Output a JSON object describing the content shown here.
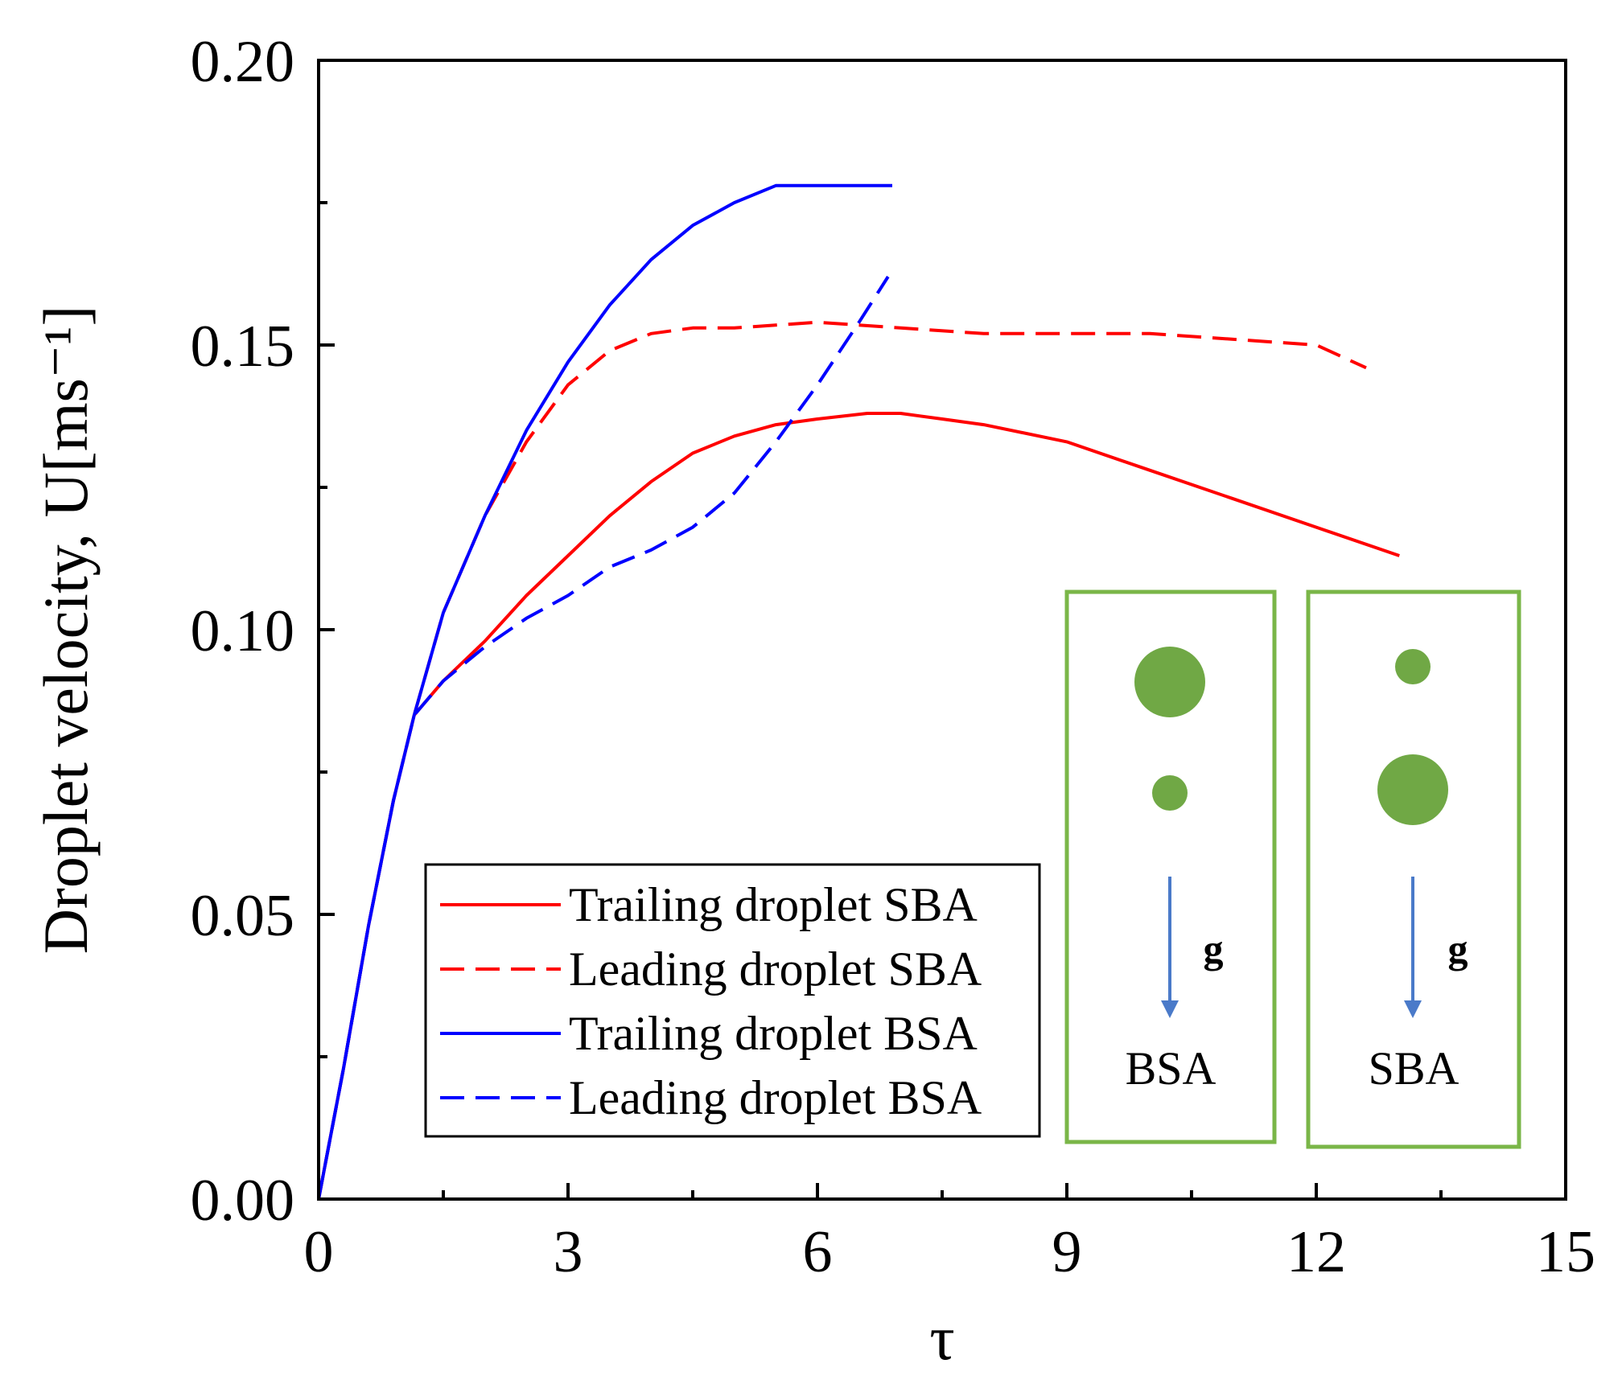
{
  "chart_data": {
    "type": "line",
    "title": "",
    "xlabel": "τ",
    "ylabel": "Droplet velocity, U[ms⁻¹]",
    "xlim": [
      0,
      15
    ],
    "ylim": [
      0,
      0.2
    ],
    "xticks": [
      0,
      3,
      6,
      9,
      12,
      15
    ],
    "xtick_labels": [
      "0",
      "3",
      "6",
      "9",
      "12",
      "15"
    ],
    "yticks": [
      0,
      0.05,
      0.1,
      0.15,
      0.2
    ],
    "ytick_labels": [
      "0.00",
      "0.05",
      "0.10",
      "0.15",
      "0.20"
    ],
    "grid": false,
    "legend_position": "lower-center",
    "series": [
      {
        "name": "Trailing droplet SBA",
        "color": "#ff0000",
        "dash": "solid",
        "x": [
          0,
          0.3,
          0.6,
          0.9,
          1.15,
          1.5,
          2.0,
          2.5,
          3.0,
          3.5,
          4.0,
          4.5,
          5.0,
          5.5,
          6.0,
          6.6,
          7.0,
          7.5,
          8.0,
          9.0,
          10.0,
          11.0,
          12.0,
          13.0
        ],
        "y": [
          0,
          0.023,
          0.048,
          0.07,
          0.085,
          0.091,
          0.098,
          0.106,
          0.113,
          0.12,
          0.126,
          0.131,
          0.134,
          0.136,
          0.137,
          0.138,
          0.138,
          0.137,
          0.136,
          0.133,
          0.128,
          0.123,
          0.118,
          0.113
        ]
      },
      {
        "name": "Leading droplet SBA",
        "color": "#ff0000",
        "dash": "dashed",
        "x": [
          0,
          0.3,
          0.6,
          0.9,
          1.15,
          1.5,
          2.0,
          2.5,
          3.0,
          3.5,
          4.0,
          4.5,
          5.0,
          6.0,
          7.0,
          8.0,
          9.0,
          10.0,
          11.0,
          12.0,
          12.6
        ],
        "y": [
          0,
          0.023,
          0.048,
          0.07,
          0.085,
          0.103,
          0.12,
          0.133,
          0.143,
          0.149,
          0.152,
          0.153,
          0.153,
          0.154,
          0.153,
          0.152,
          0.152,
          0.152,
          0.151,
          0.15,
          0.146
        ]
      },
      {
        "name": "Trailing droplet BSA",
        "color": "#0000ff",
        "dash": "solid",
        "x": [
          0,
          0.3,
          0.6,
          0.9,
          1.15,
          1.5,
          2.0,
          2.5,
          3.0,
          3.5,
          4.0,
          4.5,
          5.0,
          5.5,
          6.0,
          6.5,
          6.9
        ],
        "y": [
          0,
          0.023,
          0.048,
          0.07,
          0.085,
          0.103,
          0.12,
          0.135,
          0.147,
          0.157,
          0.165,
          0.171,
          0.175,
          0.178,
          0.178,
          0.178,
          0.178
        ]
      },
      {
        "name": "Leading droplet BSA",
        "color": "#0000ff",
        "dash": "dashed",
        "x": [
          0,
          0.3,
          0.6,
          0.9,
          1.15,
          1.5,
          2.0,
          2.5,
          3.0,
          3.5,
          4.0,
          4.5,
          5.0,
          5.5,
          6.0,
          6.5,
          6.85
        ],
        "y": [
          0,
          0.023,
          0.048,
          0.07,
          0.085,
          0.091,
          0.097,
          0.102,
          0.106,
          0.111,
          0.114,
          0.118,
          0.124,
          0.133,
          0.143,
          0.154,
          0.162
        ]
      }
    ]
  },
  "insets": [
    {
      "label": "BSA",
      "gravity_label": "g",
      "top_droplet": "large",
      "bottom_droplet": "small"
    },
    {
      "label": "SBA",
      "gravity_label": "g",
      "top_droplet": "small",
      "bottom_droplet": "large"
    }
  ],
  "colors": {
    "inset_border": "#7ab648",
    "droplet": "#70a845",
    "gravity_arrow": "#4a7ac9"
  }
}
